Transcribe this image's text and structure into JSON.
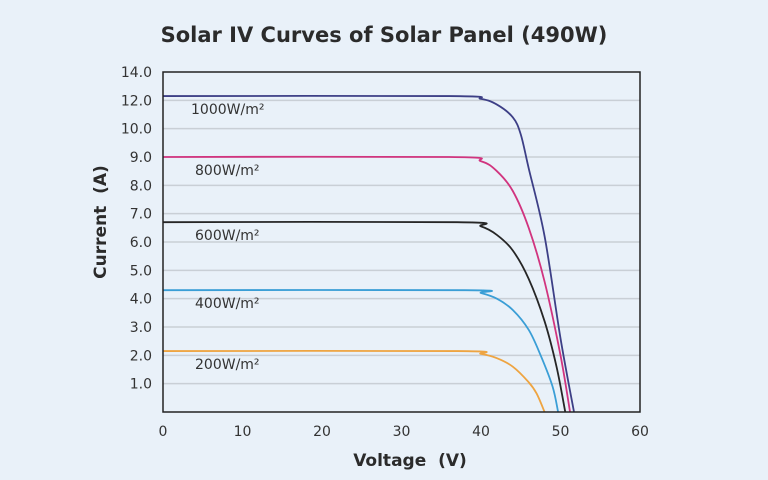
{
  "chart_data": {
    "type": "line",
    "title": "Solar IV Curves of Solar Panel (490W)",
    "xlabel": "Voltage  (V)",
    "ylabel": "Current  (A)",
    "xlim": [
      0,
      60
    ],
    "xticks": [
      "0",
      "10",
      "20",
      "30",
      "40",
      "50",
      "60"
    ],
    "yticks": [
      "1.0",
      "2.0",
      "3.0",
      "4.0",
      "5.0",
      "6.0",
      "7.0",
      "8.0",
      "9.0",
      "10.0",
      "12.0",
      "14.0"
    ],
    "ytick_values": [
      1,
      2,
      3,
      4,
      5,
      6,
      7,
      8,
      9,
      10,
      12,
      14
    ],
    "grid": "horizontal",
    "series": [
      {
        "name": "1000W/m²",
        "color": "#3d3f86",
        "x": [
          0,
          36,
          40,
          42,
          44,
          45,
          46,
          48,
          50,
          51.7
        ],
        "y": [
          12.3,
          12.3,
          12.1,
          11.7,
          10.8,
          9.8,
          8.6,
          6.2,
          2.6,
          0
        ]
      },
      {
        "name": "800W/m²",
        "color": "#d1347f",
        "x": [
          0,
          36,
          40,
          42,
          44,
          46,
          48,
          50,
          51.2
        ],
        "y": [
          9.0,
          9.0,
          8.85,
          8.5,
          7.8,
          6.5,
          4.6,
          2.0,
          0
        ]
      },
      {
        "name": "600W/m²",
        "color": "#262626",
        "x": [
          0,
          37,
          40,
          42,
          44,
          46,
          48,
          49.5,
          50.6
        ],
        "y": [
          6.7,
          6.7,
          6.55,
          6.25,
          5.7,
          4.7,
          3.2,
          1.6,
          0
        ]
      },
      {
        "name": "400W/m²",
        "color": "#3a9ed6",
        "x": [
          0,
          38,
          40,
          42,
          44,
          46,
          47.5,
          49,
          49.7
        ],
        "y": [
          4.3,
          4.3,
          4.2,
          4.0,
          3.6,
          2.9,
          2.0,
          0.9,
          0
        ]
      },
      {
        "name": "200W/m²",
        "color": "#eea441",
        "x": [
          0,
          37,
          40,
          42,
          44,
          46,
          47,
          48
        ],
        "y": [
          2.15,
          2.15,
          2.05,
          1.9,
          1.6,
          1.05,
          0.65,
          0
        ]
      }
    ]
  }
}
